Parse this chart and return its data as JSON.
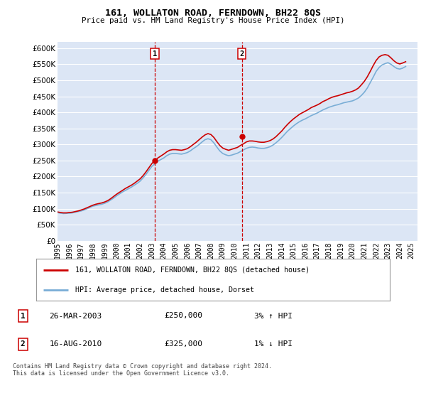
{
  "title": "161, WOLLATON ROAD, FERNDOWN, BH22 8QS",
  "subtitle": "Price paid vs. HM Land Registry's House Price Index (HPI)",
  "ylabel_ticks": [
    0,
    50000,
    100000,
    150000,
    200000,
    250000,
    300000,
    350000,
    400000,
    450000,
    500000,
    550000,
    600000
  ],
  "ylim": [
    0,
    620000
  ],
  "xlim_start": 1995.0,
  "xlim_end": 2025.5,
  "plot_bg_color": "#dce6f5",
  "grid_color": "#ffffff",
  "red_line_color": "#cc0000",
  "blue_line_color": "#7aaed6",
  "marker1_x": 2003.23,
  "marker1_y": 250000,
  "marker2_x": 2010.62,
  "marker2_y": 325000,
  "legend_label_red": "161, WOLLATON ROAD, FERNDOWN, BH22 8QS (detached house)",
  "legend_label_blue": "HPI: Average price, detached house, Dorset",
  "transaction1_label": "1",
  "transaction1_date": "26-MAR-2003",
  "transaction1_price": "£250,000",
  "transaction1_hpi": "3% ↑ HPI",
  "transaction2_label": "2",
  "transaction2_date": "16-AUG-2010",
  "transaction2_price": "£325,000",
  "transaction2_hpi": "1% ↓ HPI",
  "footer": "Contains HM Land Registry data © Crown copyright and database right 2024.\nThis data is licensed under the Open Government Licence v3.0.",
  "hpi_years": [
    1995.0,
    1995.25,
    1995.5,
    1995.75,
    1996.0,
    1996.25,
    1996.5,
    1996.75,
    1997.0,
    1997.25,
    1997.5,
    1997.75,
    1998.0,
    1998.25,
    1998.5,
    1998.75,
    1999.0,
    1999.25,
    1999.5,
    1999.75,
    2000.0,
    2000.25,
    2000.5,
    2000.75,
    2001.0,
    2001.25,
    2001.5,
    2001.75,
    2002.0,
    2002.25,
    2002.5,
    2002.75,
    2003.0,
    2003.25,
    2003.5,
    2003.75,
    2004.0,
    2004.25,
    2004.5,
    2004.75,
    2005.0,
    2005.25,
    2005.5,
    2005.75,
    2006.0,
    2006.25,
    2006.5,
    2006.75,
    2007.0,
    2007.25,
    2007.5,
    2007.75,
    2008.0,
    2008.25,
    2008.5,
    2008.75,
    2009.0,
    2009.25,
    2009.5,
    2009.75,
    2010.0,
    2010.25,
    2010.5,
    2010.75,
    2011.0,
    2011.25,
    2011.5,
    2011.75,
    2012.0,
    2012.25,
    2012.5,
    2012.75,
    2013.0,
    2013.25,
    2013.5,
    2013.75,
    2014.0,
    2014.25,
    2014.5,
    2014.75,
    2015.0,
    2015.25,
    2015.5,
    2015.75,
    2016.0,
    2016.25,
    2016.5,
    2016.75,
    2017.0,
    2017.25,
    2017.5,
    2017.75,
    2018.0,
    2018.25,
    2018.5,
    2018.75,
    2019.0,
    2019.25,
    2019.5,
    2019.75,
    2020.0,
    2020.25,
    2020.5,
    2020.75,
    2021.0,
    2021.25,
    2021.5,
    2021.75,
    2022.0,
    2022.25,
    2022.5,
    2022.75,
    2023.0,
    2023.25,
    2023.5,
    2023.75,
    2024.0,
    2024.25,
    2024.5
  ],
  "hpi_values": [
    88000,
    86000,
    85000,
    85500,
    86000,
    87000,
    89000,
    91000,
    93000,
    96000,
    100000,
    104000,
    108000,
    110000,
    112000,
    114000,
    117000,
    121000,
    127000,
    133000,
    140000,
    146000,
    152000,
    157000,
    162000,
    167000,
    173000,
    179000,
    186000,
    196000,
    207000,
    220000,
    232000,
    240000,
    248000,
    253000,
    258000,
    265000,
    270000,
    272000,
    272000,
    271000,
    270000,
    272000,
    275000,
    280000,
    287000,
    293000,
    300000,
    308000,
    315000,
    318000,
    315000,
    305000,
    292000,
    280000,
    272000,
    268000,
    265000,
    267000,
    270000,
    273000,
    278000,
    283000,
    288000,
    291000,
    292000,
    291000,
    289000,
    288000,
    288000,
    290000,
    293000,
    298000,
    305000,
    313000,
    322000,
    332000,
    342000,
    350000,
    358000,
    365000,
    371000,
    376000,
    380000,
    385000,
    390000,
    394000,
    398000,
    403000,
    408000,
    412000,
    416000,
    419000,
    422000,
    424000,
    427000,
    430000,
    432000,
    434000,
    436000,
    440000,
    445000,
    453000,
    463000,
    476000,
    493000,
    510000,
    528000,
    540000,
    548000,
    552000,
    555000,
    550000,
    543000,
    537000,
    535000,
    538000,
    543000
  ],
  "price_years": [
    1995.0,
    1995.25,
    1995.5,
    1995.75,
    1996.0,
    1996.25,
    1996.5,
    1996.75,
    1997.0,
    1997.25,
    1997.5,
    1997.75,
    1998.0,
    1998.25,
    1998.5,
    1998.75,
    1999.0,
    1999.25,
    1999.5,
    1999.75,
    2000.0,
    2000.25,
    2000.5,
    2000.75,
    2001.0,
    2001.25,
    2001.5,
    2001.75,
    2002.0,
    2002.25,
    2002.5,
    2002.75,
    2003.0,
    2003.25,
    2003.5,
    2003.75,
    2004.0,
    2004.25,
    2004.5,
    2004.75,
    2005.0,
    2005.25,
    2005.5,
    2005.75,
    2006.0,
    2006.25,
    2006.5,
    2006.75,
    2007.0,
    2007.25,
    2007.5,
    2007.75,
    2008.0,
    2008.25,
    2008.5,
    2008.75,
    2009.0,
    2009.25,
    2009.5,
    2009.75,
    2010.0,
    2010.25,
    2010.5,
    2010.75,
    2011.0,
    2011.25,
    2011.5,
    2011.75,
    2012.0,
    2012.25,
    2012.5,
    2012.75,
    2013.0,
    2013.25,
    2013.5,
    2013.75,
    2014.0,
    2014.25,
    2014.5,
    2014.75,
    2015.0,
    2015.25,
    2015.5,
    2015.75,
    2016.0,
    2016.25,
    2016.5,
    2016.75,
    2017.0,
    2017.25,
    2017.5,
    2017.75,
    2018.0,
    2018.25,
    2018.5,
    2018.75,
    2019.0,
    2019.25,
    2019.5,
    2019.75,
    2020.0,
    2020.25,
    2020.5,
    2020.75,
    2021.0,
    2021.25,
    2021.5,
    2021.75,
    2022.0,
    2022.25,
    2022.5,
    2022.75,
    2023.0,
    2023.25,
    2023.5,
    2023.75,
    2024.0,
    2024.25,
    2024.5
  ],
  "price_values": [
    90000,
    88000,
    87000,
    87000,
    88000,
    89000,
    91000,
    93000,
    96000,
    99000,
    103000,
    107000,
    111000,
    114000,
    116000,
    118000,
    121000,
    125000,
    131000,
    138000,
    145000,
    151000,
    157000,
    163000,
    168000,
    173000,
    179000,
    186000,
    193000,
    203000,
    215000,
    228000,
    241000,
    250000,
    258000,
    264000,
    270000,
    277000,
    282000,
    284000,
    284000,
    283000,
    282000,
    284000,
    287000,
    293000,
    300000,
    307000,
    315000,
    323000,
    330000,
    334000,
    331000,
    322000,
    309000,
    297000,
    289000,
    285000,
    282000,
    285000,
    288000,
    291000,
    297000,
    302000,
    308000,
    311000,
    311000,
    310000,
    308000,
    307000,
    307000,
    309000,
    312000,
    317000,
    324000,
    333000,
    342000,
    353000,
    363000,
    372000,
    380000,
    387000,
    394000,
    399000,
    404000,
    409000,
    415000,
    419000,
    423000,
    428000,
    434000,
    438000,
    443000,
    447000,
    450000,
    452000,
    455000,
    458000,
    461000,
    463000,
    466000,
    470000,
    476000,
    486000,
    497000,
    511000,
    528000,
    546000,
    562000,
    573000,
    578000,
    580000,
    578000,
    570000,
    561000,
    554000,
    551000,
    554000,
    558000
  ]
}
